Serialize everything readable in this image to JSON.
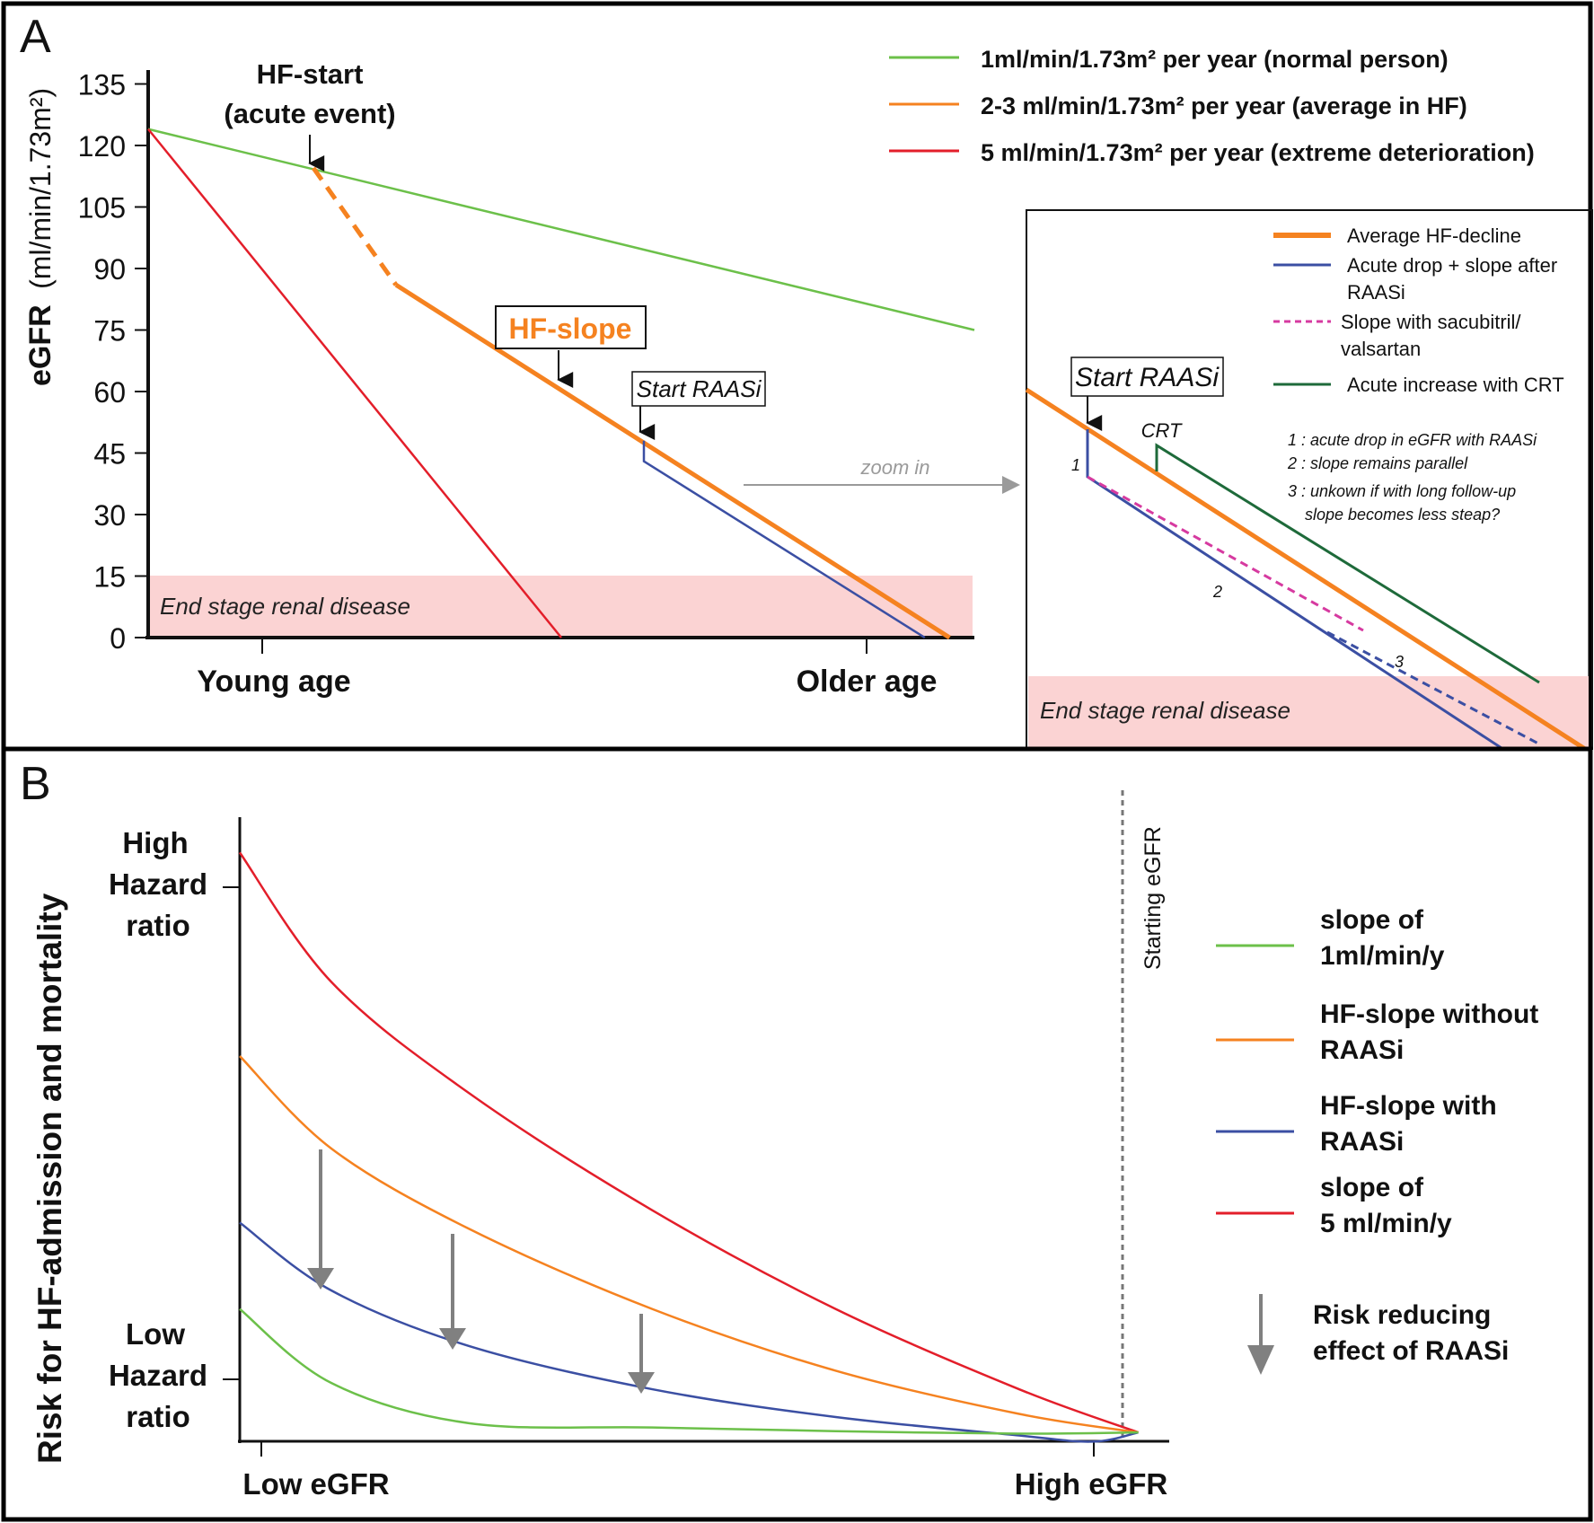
{
  "panel_a": {
    "letter": "A",
    "ylabel_bold": "eGFR",
    "ylabel_unit": "(ml/min/1.73m²)",
    "yticks": [
      "135",
      "120",
      "105",
      "90",
      "75",
      "60",
      "45",
      "30",
      "15",
      "0"
    ],
    "xtick_left": "Young age",
    "xtick_right": "Older age",
    "hf_start_line1": "HF-start",
    "hf_start_line2": "(acute event)",
    "hf_slope_label": "HF-slope",
    "start_raasi": "Start RAASi",
    "esrd": "End stage renal disease",
    "zoom_in": "zoom in",
    "legend": [
      {
        "label": "1ml/min/1.73m² per year (normal person)",
        "color": "#6cc04a"
      },
      {
        "label": "2-3 ml/min/1.73m² per year (average in HF)",
        "color": "#f58220"
      },
      {
        "label": "5 ml/min/1.73m² per year (extreme deterioration)",
        "color": "#e31e2a"
      }
    ]
  },
  "inset": {
    "legend": [
      {
        "lines": [
          "Average HF-decline"
        ],
        "color": "#f58220",
        "style": "thick"
      },
      {
        "lines": [
          "Acute drop + slope after",
          "RAASi"
        ],
        "color": "#3b4fa3",
        "style": "solid"
      },
      {
        "lines": [
          "Slope with sacubitril/",
          "valsartan"
        ],
        "color": "#d63aa0",
        "style": "dashed"
      },
      {
        "lines": [
          "Acute increase with CRT"
        ],
        "color": "#1e6a3a",
        "style": "solid"
      }
    ],
    "start_raasi": "Start RAASi",
    "crt": "CRT",
    "mark1": "1",
    "mark2": "2",
    "mark3": "3",
    "notes": [
      "1 : acute drop in eGFR with RAASi",
      "2 : slope remains parallel",
      "3 : unkown if with long follow-up",
      "slope becomes less steap?"
    ],
    "esrd": "End stage renal disease"
  },
  "panel_b": {
    "letter": "B",
    "ylabel": "Risk for HF-admission and mortality",
    "high_lines": [
      "High",
      "Hazard",
      "ratio"
    ],
    "low_lines": [
      "Low",
      "Hazard",
      "ratio"
    ],
    "xtick_left": "Low eGFR",
    "xtick_right": "High eGFR",
    "starting_egfr": "Starting eGFR",
    "legend": [
      {
        "lines": [
          "slope of",
          "1ml/min/y"
        ],
        "color": "#6cc04a"
      },
      {
        "lines": [
          "HF-slope without",
          "RAASi"
        ],
        "color": "#f58220"
      },
      {
        "lines": [
          "HF-slope with",
          "RAASi"
        ],
        "color": "#3b4fa3"
      },
      {
        "lines": [
          "slope of",
          "5 ml/min/y"
        ],
        "color": "#e31e2a"
      }
    ],
    "arrow_legend": [
      "Risk reducing",
      "effect of RAASi"
    ],
    "arrow_color": "#808080"
  },
  "chart_data": [
    {
      "type": "line",
      "panel": "A",
      "ylabel": "eGFR (ml/min/1.73m²)",
      "ylim": [
        0,
        135
      ],
      "xlim": [
        0,
        1
      ],
      "x_tick_labels": [
        "Young age",
        "Older age"
      ],
      "series": [
        {
          "name": "1ml/min/1.73m² per year (normal person)",
          "color": "#6cc04a",
          "points": [
            [
              0,
              124
            ],
            [
              1,
              75
            ]
          ]
        },
        {
          "name": "5 ml/min/1.73m² per year (extreme deterioration)",
          "color": "#e31e2a",
          "points": [
            [
              0,
              124
            ],
            [
              0.5,
              0
            ]
          ]
        },
        {
          "name": "2-3 ml/min/1.73m² per year (average in HF)",
          "color": "#f58220",
          "points": [
            [
              0.2,
              114.5
            ],
            [
              0.3,
              86
            ],
            [
              0.97,
              0
            ]
          ],
          "dashed_segment": [
            [
              0.2,
              114.5
            ],
            [
              0.3,
              86
            ]
          ]
        },
        {
          "name": "Start RAASi",
          "color": "#3b4fa3",
          "points": [
            [
              0.6,
              48
            ],
            [
              0.6,
              43
            ],
            [
              0.94,
              0
            ]
          ]
        }
      ],
      "annotations": [
        "HF-start (acute event)",
        "HF-slope",
        "Start RAASi",
        "End stage renal disease"
      ],
      "shaded_band": {
        "label": "End stage renal disease",
        "y_range": [
          0,
          15
        ],
        "color": "#fbd3d3"
      }
    },
    {
      "type": "line",
      "panel": "B",
      "ylabel": "Risk for HF-admission and mortality",
      "x_tick_labels": [
        "Low eGFR",
        "High eGFR"
      ],
      "y_tick_labels": [
        "High Hazard ratio",
        "Low Hazard ratio"
      ],
      "xlim": [
        0,
        1
      ],
      "ylim": [
        0,
        1
      ],
      "series": [
        {
          "name": "slope of 5 ml/min/y",
          "color": "#e31e2a",
          "points": [
            [
              0,
              0.95
            ],
            [
              0.1,
              0.74
            ],
            [
              0.25,
              0.56
            ],
            [
              0.45,
              0.37
            ],
            [
              0.65,
              0.21
            ],
            [
              0.85,
              0.08
            ],
            [
              0.98,
              0.01
            ]
          ]
        },
        {
          "name": "HF-slope without RAASi",
          "color": "#f58220",
          "points": [
            [
              0,
              0.62
            ],
            [
              0.1,
              0.47
            ],
            [
              0.25,
              0.34
            ],
            [
              0.45,
              0.21
            ],
            [
              0.65,
              0.11
            ],
            [
              0.85,
              0.04
            ],
            [
              0.98,
              0.01
            ]
          ]
        },
        {
          "name": "HF-slope with RAASi",
          "color": "#3b4fa3",
          "points": [
            [
              0,
              0.35
            ],
            [
              0.1,
              0.24
            ],
            [
              0.25,
              0.15
            ],
            [
              0.45,
              0.08
            ],
            [
              0.65,
              0.035
            ],
            [
              0.85,
              0.005
            ],
            [
              0.93,
              -0.005
            ],
            [
              0.98,
              0.01
            ]
          ]
        },
        {
          "name": "slope of 1ml/min/y",
          "color": "#6cc04a",
          "points": [
            [
              0,
              0.21
            ],
            [
              0.1,
              0.09
            ],
            [
              0.25,
              0.025
            ],
            [
              0.45,
              0.018
            ],
            [
              0.65,
              0.012
            ],
            [
              0.85,
              0.008
            ],
            [
              0.98,
              0.01
            ]
          ]
        }
      ],
      "annotations": [
        "Starting eGFR",
        "Risk reducing effect of RAASi"
      ]
    }
  ]
}
